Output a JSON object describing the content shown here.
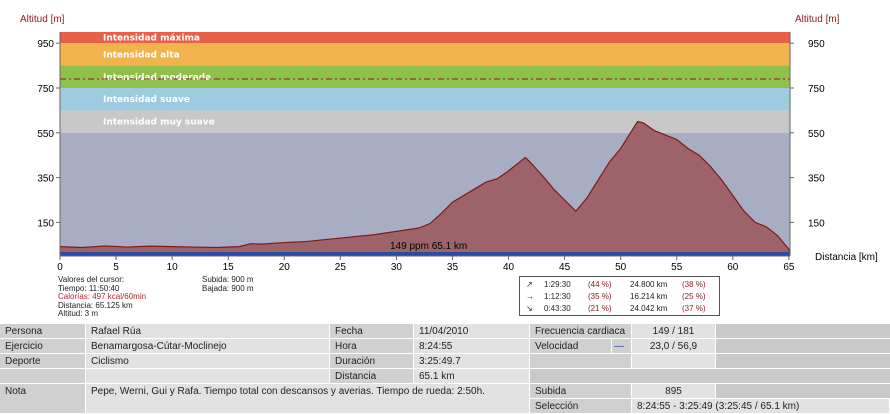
{
  "chart_data": {
    "type": "area",
    "ylabel_left": "Altitud [m]",
    "ylabel_right": "Altitud [m]",
    "xlabel": "Distancia [km]",
    "xlim": [
      0,
      65.1
    ],
    "ylim": [
      0,
      1000
    ],
    "x_ticks": [
      0,
      5,
      10,
      15,
      20,
      25,
      30,
      35,
      40,
      45,
      50,
      55,
      60,
      65
    ],
    "y_ticks": [
      150,
      350,
      550,
      750,
      950
    ],
    "bands": [
      {
        "label": "Intensidad máxima",
        "from": 950,
        "to": 1000,
        "color": "#e8604a"
      },
      {
        "label": "Intensidad alta",
        "from": 850,
        "to": 950,
        "color": "#f2b24c"
      },
      {
        "label": "Intensidad moderada",
        "from": 750,
        "to": 850,
        "color": "#8fc04c"
      },
      {
        "label": "Intensidad suave",
        "from": 650,
        "to": 750,
        "color": "#9dcbe0"
      },
      {
        "label": "Intensidad muy suave",
        "from": 550,
        "to": 650,
        "color": "#c8c8c8"
      },
      {
        "label": "",
        "from": 0,
        "to": 550,
        "color": "#a9adc4"
      }
    ],
    "series": [
      {
        "x": [
          0,
          2,
          4,
          6,
          8,
          10,
          12,
          14,
          16,
          17,
          18,
          20,
          22,
          24,
          26,
          28,
          30,
          32,
          33,
          34,
          35,
          36,
          37,
          38,
          39,
          40,
          41,
          41.5,
          42,
          43,
          44,
          45,
          46,
          47,
          48,
          49,
          50,
          51,
          51.5,
          52,
          53,
          54,
          55,
          56,
          57,
          58,
          59,
          60,
          61,
          62,
          63,
          64,
          65,
          65.1
        ],
        "y": [
          42,
          38,
          45,
          40,
          44,
          42,
          40,
          38,
          42,
          55,
          53,
          60,
          65,
          75,
          85,
          95,
          110,
          125,
          145,
          190,
          240,
          270,
          300,
          330,
          345,
          380,
          420,
          440,
          415,
          360,
          300,
          250,
          200,
          260,
          340,
          420,
          480,
          560,
          600,
          595,
          560,
          540,
          520,
          480,
          450,
          400,
          340,
          270,
          200,
          150,
          130,
          90,
          30,
          10
        ]
      }
    ],
    "hr_dashline": 790,
    "annotation": "149 ppm 65.1 km"
  },
  "cursor_info": {
    "title": "Valores del cursor:",
    "tiempo": "Tiempo: 11:50:40",
    "calorias": "Calorías: 497 kcal/60min",
    "distancia": "Distancia: 65.125 km",
    "altitud": "Altitud: 3 m"
  },
  "climb_info": {
    "subida": "Subida: 900 m",
    "bajada": "Bajada: 900 m"
  },
  "stats": [
    {
      "arrow": "↗",
      "time": "1:29:30",
      "pct1": "(44 %)",
      "dist": "24.800 km",
      "pct2": "(38 %)"
    },
    {
      "arrow": "→",
      "time": "1:12:30",
      "pct1": "(35 %)",
      "dist": "16.214 km",
      "pct2": "(25 %)"
    },
    {
      "arrow": "↘",
      "time": "0:43:30",
      "pct1": "(21 %)",
      "dist": "24.042 km",
      "pct2": "(37 %)"
    }
  ],
  "table": {
    "persona_label": "Persona",
    "persona": "Rafael Rúa",
    "ejercicio_label": "Ejercicio",
    "ejercicio": "Benamargosa-Cútar-Moclinejo",
    "deporte_label": "Deporte",
    "deporte": "Ciclismo",
    "nota_label": "Nota",
    "nota": "Pepe, Werni, Gui y Rafa. Tiempo total con descansos y averias. Tiempo de rueda: 2:50h.",
    "fecha_label": "Fecha",
    "fecha": "11/04/2010",
    "hora_label": "Hora",
    "hora": "8:24:55",
    "duracion_label": "Duración",
    "duracion": "3:25:49.7",
    "distancia_label": "Distancia",
    "distancia": "65.1 km",
    "fc_label": "Frecuencia cardiaca",
    "fc": "149 / 181",
    "velocidad_label": "Velocidad",
    "velocidad_dash": "—",
    "velocidad": "23,0 / 56,9",
    "subida_label": "Subida",
    "subida": "895",
    "seleccion_label": "Selección",
    "seleccion": "8:24:55 - 3:25:49 (3:25:45 / 65.1 km)"
  }
}
